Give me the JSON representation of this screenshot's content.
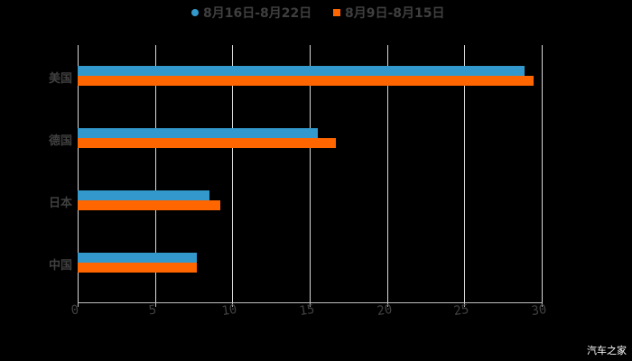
{
  "chart_data": {
    "type": "bar",
    "orientation": "horizontal",
    "title": "",
    "xlabel": "",
    "ylabel": "",
    "categories": [
      "美国",
      "德国",
      "日本",
      "中国"
    ],
    "series": [
      {
        "name": "8月16日-8月22日",
        "color": "#3399cc",
        "values": [
          28.9,
          15.5,
          8.5,
          7.7
        ]
      },
      {
        "name": "8月9日-8月15日",
        "color": "#ff6600",
        "values": [
          29.5,
          16.7,
          9.2,
          7.7
        ]
      }
    ],
    "xlim": [
      0,
      30
    ],
    "xticks": [
      "0",
      "5",
      "10",
      "15",
      "20",
      "25",
      "30"
    ],
    "grid": true,
    "legend_position": "top"
  },
  "legend": {
    "series1_label": "8月16日-8月22日",
    "series2_label": "8月9日-8月15日"
  },
  "watermark": "汽车之家"
}
